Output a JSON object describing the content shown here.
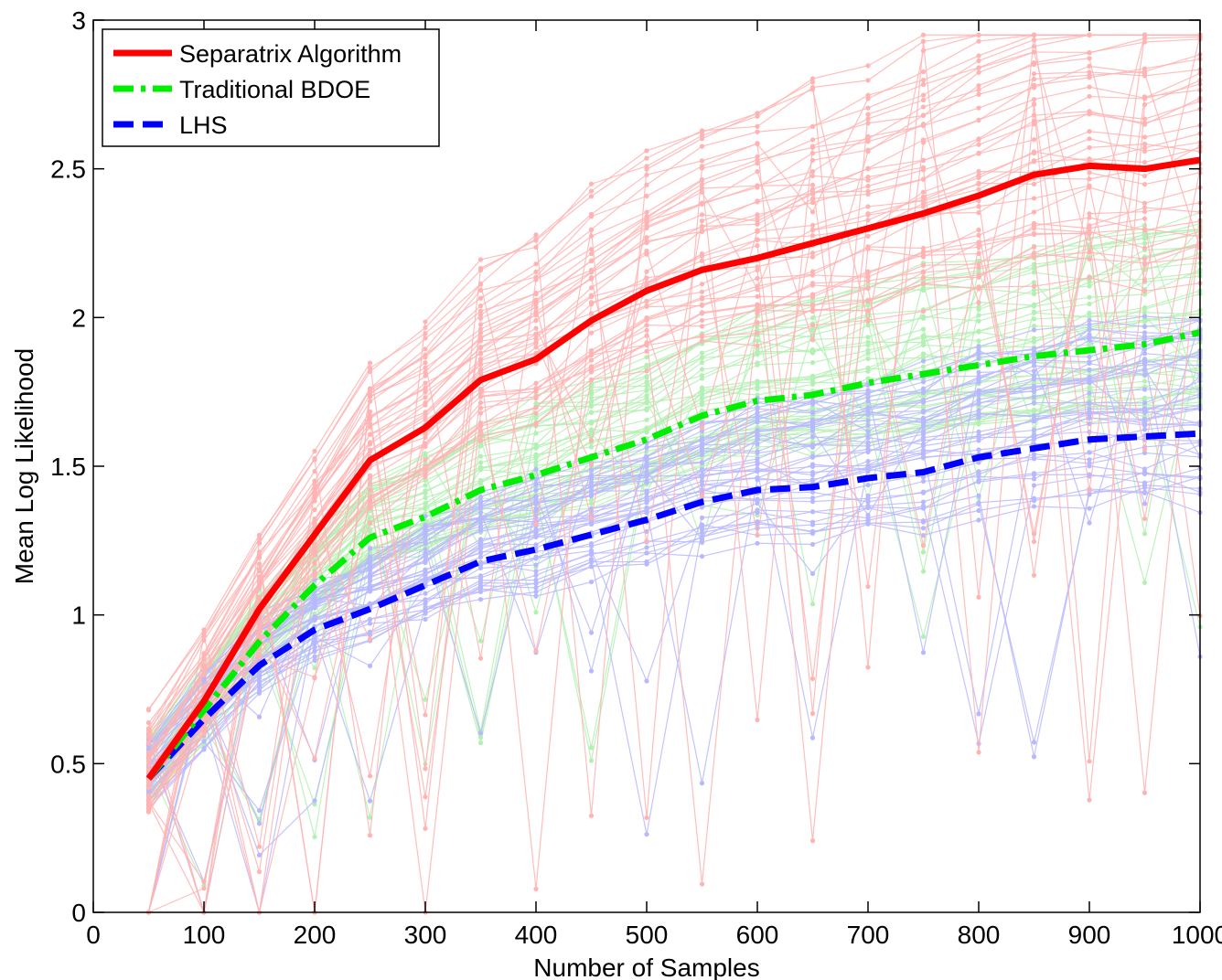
{
  "chart_data": {
    "type": "line",
    "title": "",
    "xlabel": "Number of Samples",
    "ylabel": "Mean Log Likelihood",
    "xlim": [
      0,
      1000
    ],
    "ylim": [
      0,
      3
    ],
    "x_ticks": [
      0,
      100,
      200,
      300,
      400,
      500,
      600,
      700,
      800,
      900,
      1000
    ],
    "y_ticks": [
      0,
      0.5,
      1,
      1.5,
      2,
      2.5,
      3
    ],
    "x_tick_labels": [
      "0",
      "100",
      "200",
      "300",
      "400",
      "500",
      "600",
      "700",
      "800",
      "900",
      "1000"
    ],
    "y_tick_labels": [
      "0",
      "0.5",
      "1",
      "1.5",
      "2",
      "2.5",
      "3"
    ],
    "grid": false,
    "legend_position": "top-left",
    "x": [
      50,
      100,
      150,
      200,
      250,
      300,
      350,
      400,
      450,
      500,
      550,
      600,
      650,
      700,
      750,
      800,
      850,
      900,
      950,
      1000
    ],
    "series": [
      {
        "name": "Separatrix Algorithm",
        "color": "#ff0000",
        "style": "solid",
        "values": [
          0.45,
          0.71,
          1.02,
          1.27,
          1.52,
          1.63,
          1.79,
          1.86,
          1.99,
          2.09,
          2.16,
          2.2,
          2.25,
          2.3,
          2.35,
          2.41,
          2.48,
          2.51,
          2.5,
          2.53
        ]
      },
      {
        "name": "Traditional BDOE",
        "color": "#00ee00",
        "style": "dashdot",
        "values": [
          0.45,
          0.68,
          0.91,
          1.1,
          1.26,
          1.33,
          1.42,
          1.47,
          1.53,
          1.59,
          1.67,
          1.72,
          1.74,
          1.78,
          1.81,
          1.84,
          1.87,
          1.89,
          1.91,
          1.95
        ]
      },
      {
        "name": "LHS",
        "color": "#0000ff",
        "style": "dashed",
        "values": [
          0.45,
          0.65,
          0.83,
          0.95,
          1.02,
          1.1,
          1.18,
          1.22,
          1.27,
          1.32,
          1.38,
          1.42,
          1.43,
          1.46,
          1.48,
          1.53,
          1.56,
          1.59,
          1.6,
          1.61
        ]
      }
    ],
    "background_runs": {
      "description_colors": {
        "Separatrix Algorithm": "#ffb3b3",
        "Traditional BDOE": "#b3f0b3",
        "LHS": "#b8b8ff"
      }
    }
  }
}
